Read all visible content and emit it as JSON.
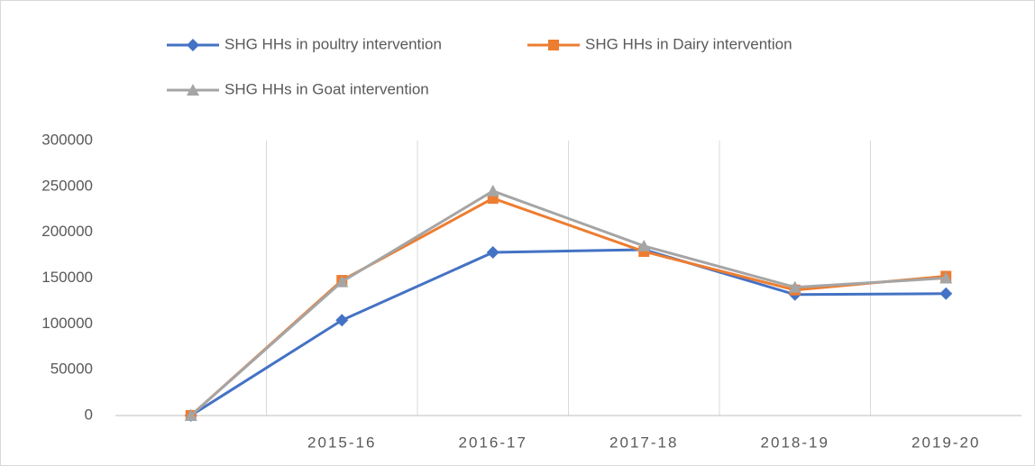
{
  "chart_data": {
    "type": "line",
    "categories": [
      null,
      "2015-16",
      "2016-17",
      "2017-18",
      "2018-19",
      "2019-20"
    ],
    "series": [
      {
        "name": "SHG HHs in poultry intervention",
        "color": "#4472c4",
        "marker": "diamond",
        "values": [
          0,
          104000,
          178000,
          181000,
          132000,
          133000
        ]
      },
      {
        "name": "SHG HHs in Dairy intervention",
        "color": "#ed7d31",
        "marker": "square",
        "values": [
          0,
          147500,
          237000,
          179000,
          137000,
          152000
        ]
      },
      {
        "name": "SHG HHs in Goat intervention",
        "color": "#a5a5a5",
        "marker": "triangle",
        "values": [
          0,
          146000,
          245000,
          185000,
          140000,
          150000
        ]
      }
    ],
    "ylim": [
      0,
      300000
    ],
    "yticks": [
      0,
      50000,
      100000,
      150000,
      200000,
      250000,
      300000
    ],
    "legend": "top"
  }
}
